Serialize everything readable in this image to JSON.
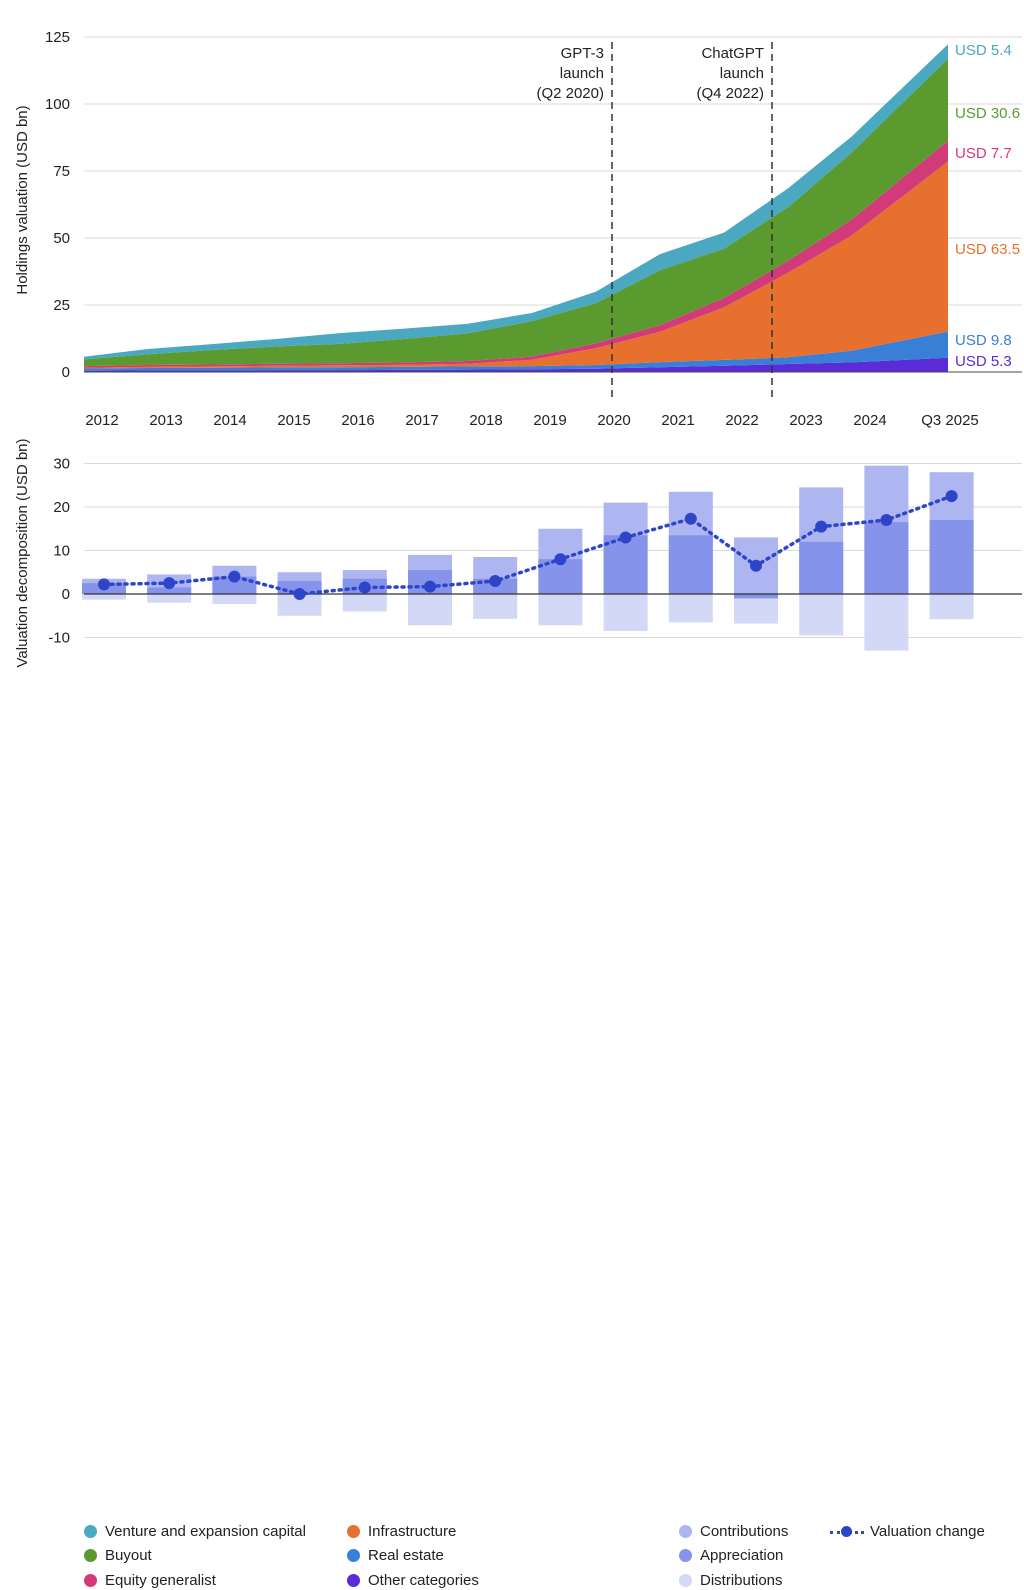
{
  "chart_data": [
    {
      "type": "area",
      "stacked": true,
      "ylabel": "Holdings valuation (USD bn)",
      "ylim": [
        0,
        125
      ],
      "yticks": [
        0,
        25,
        50,
        75,
        100,
        125
      ],
      "x_ticks": [
        "2012",
        "2013",
        "2014",
        "2015",
        "2016",
        "2017",
        "2018",
        "2019",
        "2020",
        "2021",
        "2022",
        "2023",
        "2024",
        "Q3 2025"
      ],
      "x": [
        "Q1 2012",
        "Q1 2013",
        "Q1 2014",
        "Q1 2015",
        "Q1 2016",
        "Q1 2017",
        "Q1 2018",
        "Q1 2019",
        "Q1 2020",
        "Q1 2021",
        "Q1 2022",
        "Q1 2023",
        "Q1 2024",
        "Q3 2025"
      ],
      "series": [
        {
          "name": "Other categories",
          "color": "#5a2bd6",
          "values": [
            0.5,
            0.6,
            0.6,
            0.7,
            0.7,
            0.8,
            0.9,
            1.0,
            1.2,
            1.8,
            2.3,
            3.0,
            3.6,
            5.3
          ]
        },
        {
          "name": "Real estate",
          "color": "#3a7fd6",
          "values": [
            0.8,
            0.9,
            1.0,
            1.0,
            1.1,
            1.1,
            1.2,
            1.2,
            1.4,
            1.9,
            2.2,
            2.5,
            4.4,
            9.8
          ]
        },
        {
          "name": "Infrastructure",
          "color": "#e8702e",
          "values": [
            0.3,
            0.4,
            0.5,
            0.6,
            0.7,
            0.8,
            1.0,
            2.4,
            6.3,
            11.3,
            19.6,
            31.5,
            43.0,
            63.5
          ]
        },
        {
          "name": "Equity generalist",
          "color": "#d23a7a",
          "values": [
            0.6,
            0.7,
            0.7,
            0.8,
            0.8,
            0.9,
            1.0,
            1.2,
            1.8,
            2.5,
            3.5,
            4.5,
            6.0,
            7.7
          ]
        },
        {
          "name": "Buyout",
          "color": "#5a9a2e",
          "values": [
            2.5,
            4.0,
            5.4,
            6.4,
            7.2,
            8.7,
            10.3,
            13.2,
            15.0,
            20.5,
            18.4,
            20.0,
            25.0,
            30.6
          ]
        },
        {
          "name": "Venture and expansion capital",
          "color": "#4aa8c0",
          "values": [
            1.0,
            2.0,
            2.2,
            2.8,
            4.0,
            3.9,
            3.6,
            3.0,
            4.3,
            6.0,
            6.0,
            7.0,
            6.0,
            5.4
          ]
        }
      ],
      "end_labels": [
        "USD 5.4",
        "USD 30.6",
        "USD 7.7",
        "USD 63.5",
        "USD 9.8",
        "USD 5.3"
      ],
      "annotations": [
        {
          "at": "Q2 2020",
          "lines": [
            "GPT-3",
            "launch",
            "(Q2 2020)"
          ]
        },
        {
          "at": "Q4 2022",
          "lines": [
            "ChatGPT",
            "launch",
            "(Q4 2022)"
          ]
        }
      ]
    },
    {
      "type": "bar",
      "ylabel": "Valuation decomposition (USD bn)",
      "ylim": [
        -15,
        33
      ],
      "yticks": [
        -10,
        0,
        10,
        20,
        30
      ],
      "categories": [
        "2012",
        "2013",
        "2014",
        "2015",
        "2016",
        "2017",
        "2018",
        "2019",
        "2020",
        "2021",
        "2022",
        "2023",
        "2024",
        "Q3 2025"
      ],
      "series": [
        {
          "name": "Contributions",
          "color": "#adb6f0",
          "values": [
            3.5,
            4.5,
            6.5,
            5.0,
            5.5,
            9.0,
            8.5,
            15.0,
            21.0,
            23.5,
            13.0,
            24.5,
            29.5,
            28.0
          ]
        },
        {
          "name": "Appreciation",
          "color": "#8593ea",
          "values": [
            2.5,
            1.5,
            4.0,
            3.0,
            3.5,
            5.5,
            3.5,
            8.0,
            13.5,
            13.5,
            -1.0,
            12.0,
            16.5,
            17.0
          ]
        },
        {
          "name": "Distributions",
          "color": "#d3d8f6",
          "values": [
            -1.3,
            -2.0,
            -2.3,
            -5.0,
            -4.0,
            -7.2,
            -5.7,
            -7.2,
            -8.5,
            -6.5,
            -6.8,
            -9.5,
            -13.0,
            -5.8
          ]
        }
      ],
      "line": {
        "name": "Valuation change",
        "color": "#2f45c9",
        "values": [
          2.2,
          2.5,
          4.0,
          0.0,
          1.5,
          1.7,
          3.0,
          8.0,
          13.0,
          17.3,
          6.5,
          15.5,
          17.0,
          22.5
        ]
      }
    }
  ],
  "legend": {
    "left_col1": [
      "Venture and expansion capital",
      "Buyout",
      "Equity generalist"
    ],
    "left_col2": [
      "Infrastructure",
      "Real estate",
      "Other categories"
    ],
    "right_col1": [
      "Contributions",
      "Appreciation",
      "Distributions"
    ],
    "right_col2": [
      "Valuation change"
    ],
    "colors": {
      "Venture and expansion capital": "#4aa8c0",
      "Buyout": "#5a9a2e",
      "Equity generalist": "#d23a7a",
      "Infrastructure": "#e8702e",
      "Real estate": "#3a7fd6",
      "Other categories": "#5a2bd6",
      "Contributions": "#adb6f0",
      "Appreciation": "#8593ea",
      "Distributions": "#d3d8f6"
    }
  }
}
